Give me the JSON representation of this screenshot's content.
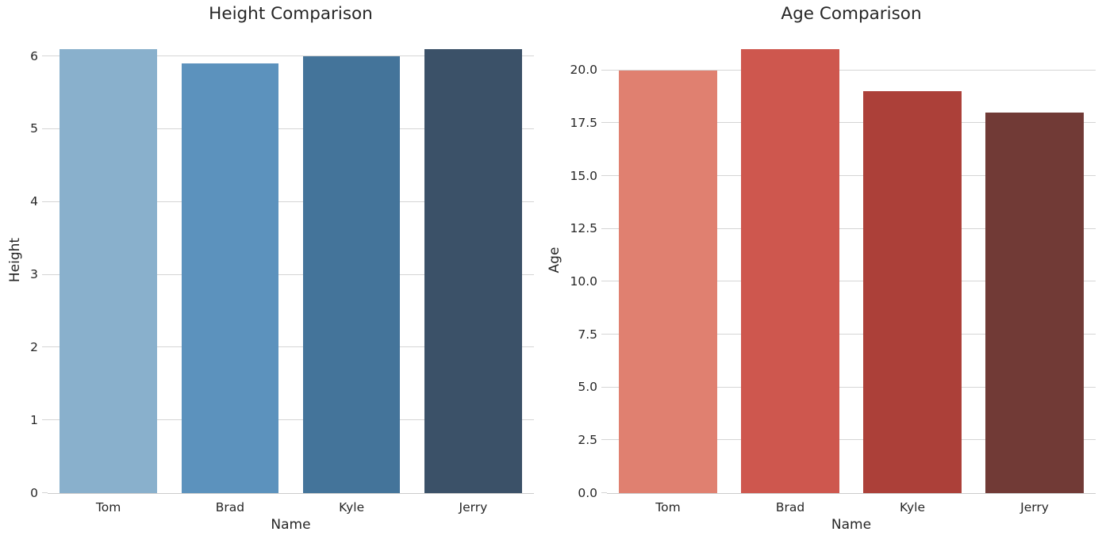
{
  "style": {
    "background": "#ffffff",
    "text_color": "#262626",
    "grid_color": "#d5d5d5",
    "spine_color": "#cccccc"
  },
  "chart_data": [
    {
      "type": "bar",
      "title": "Height Comparison",
      "xlabel": "Name",
      "ylabel": "Height",
      "categories": [
        "Tom",
        "Brad",
        "Kyle",
        "Jerry"
      ],
      "values": [
        6.1,
        5.9,
        6.0,
        6.1
      ],
      "bar_colors": [
        "#89B0CC",
        "#5C92BD",
        "#44749A",
        "#3B5168"
      ],
      "ylim": [
        0,
        6.405
      ],
      "yticks": [
        0,
        1,
        2,
        3,
        4,
        5,
        6
      ],
      "ytick_labels": [
        "0",
        "1",
        "2",
        "3",
        "4",
        "5",
        "6"
      ],
      "bar_width_fraction": 0.8,
      "grid": "horizontal",
      "legend": "none"
    },
    {
      "type": "bar",
      "title": "Age Comparison",
      "xlabel": "Name",
      "ylabel": "Age",
      "categories": [
        "Tom",
        "Brad",
        "Kyle",
        "Jerry"
      ],
      "values": [
        20,
        21,
        19,
        18
      ],
      "bar_colors": [
        "#E08070",
        "#CE574E",
        "#AC4039",
        "#713A36"
      ],
      "ylim": [
        0,
        22.05
      ],
      "yticks": [
        0,
        2.5,
        5,
        7.5,
        10,
        12.5,
        15,
        17.5,
        20
      ],
      "ytick_labels": [
        "0.0",
        "2.5",
        "5.0",
        "7.5",
        "10.0",
        "12.5",
        "15.0",
        "17.5",
        "20.0"
      ],
      "bar_width_fraction": 0.8,
      "grid": "horizontal",
      "legend": "none"
    }
  ]
}
